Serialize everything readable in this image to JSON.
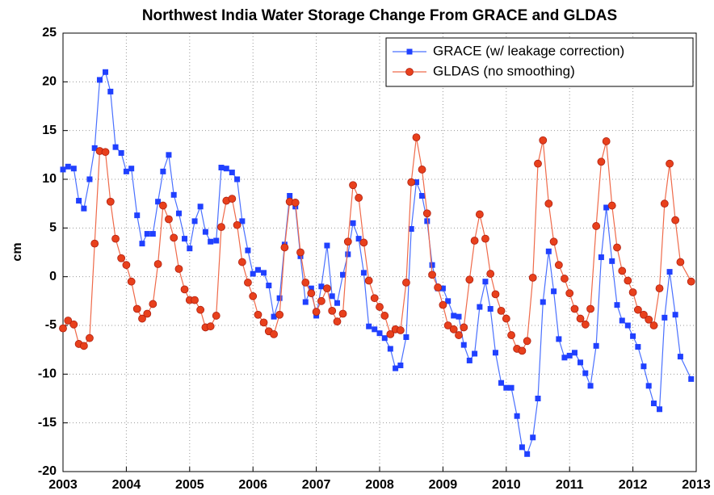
{
  "chart_data": {
    "type": "line",
    "title": "Northwest India Water Storage Change From GRACE and GLDAS",
    "y_label": "cm",
    "x": [
      2003.0,
      2003.08,
      2003.17,
      2003.25,
      2003.33,
      2003.42,
      2003.5,
      2003.58,
      2003.67,
      2003.75,
      2003.83,
      2003.92,
      2004.0,
      2004.08,
      2004.17,
      2004.25,
      2004.33,
      2004.42,
      2004.5,
      2004.58,
      2004.67,
      2004.75,
      2004.83,
      2004.92,
      2005.0,
      2005.08,
      2005.17,
      2005.25,
      2005.33,
      2005.42,
      2005.5,
      2005.58,
      2005.67,
      2005.75,
      2005.83,
      2005.92,
      2006.0,
      2006.08,
      2006.17,
      2006.25,
      2006.33,
      2006.42,
      2006.5,
      2006.58,
      2006.67,
      2006.75,
      2006.83,
      2006.92,
      2007.0,
      2007.08,
      2007.17,
      2007.25,
      2007.33,
      2007.42,
      2007.5,
      2007.58,
      2007.67,
      2007.75,
      2007.83,
      2007.92,
      2008.0,
      2008.08,
      2008.17,
      2008.25,
      2008.33,
      2008.42,
      2008.5,
      2008.58,
      2008.67,
      2008.75,
      2008.83,
      2008.92,
      2009.0,
      2009.08,
      2009.17,
      2009.25,
      2009.33,
      2009.42,
      2009.5,
      2009.58,
      2009.67,
      2009.75,
      2009.83,
      2009.92,
      2010.0,
      2010.08,
      2010.17,
      2010.25,
      2010.33,
      2010.42,
      2010.5,
      2010.58,
      2010.67,
      2010.75,
      2010.83,
      2010.92,
      2011.0,
      2011.08,
      2011.17,
      2011.25,
      2011.33,
      2011.42,
      2011.5,
      2011.58,
      2011.67,
      2011.75,
      2011.83,
      2011.92,
      2012.0,
      2012.08,
      2012.17,
      2012.25,
      2012.33,
      2012.42,
      2012.5,
      2012.58,
      2012.67,
      2012.75,
      2012.92
    ],
    "series": [
      {
        "name": "GRACE (w/ leakage correction)",
        "color": "#2040ff",
        "line_color": "#4a70ff",
        "marker": "square",
        "values": [
          11,
          11.3,
          11.1,
          7.8,
          7,
          10,
          13.2,
          20.2,
          21,
          19,
          13.3,
          12.7,
          10.8,
          11.1,
          6.3,
          3.4,
          4.4,
          4.4,
          7.7,
          10.8,
          12.5,
          8.4,
          6.5,
          3.9,
          2.9,
          5.7,
          7.2,
          4.6,
          3.6,
          3.7,
          11.2,
          11.1,
          10.7,
          10,
          5.7,
          2.7,
          0.3,
          0.7,
          0.4,
          -0.9,
          -4.1,
          -2.2,
          3.3,
          8.3,
          7.2,
          2.1,
          -2.6,
          -1.2,
          -4,
          -1,
          3.2,
          -2,
          -2.7,
          0.2,
          2.3,
          5.5,
          3.9,
          0.4,
          -5.1,
          -5.4,
          -5.8,
          -6.3,
          -7.4,
          -9.4,
          -9.1,
          -6.2,
          4.9,
          9.7,
          8.3,
          5.7,
          1.2,
          -1.2,
          -1.2,
          -2.5,
          -4,
          -4.1,
          -7,
          -8.6,
          -7.9,
          -3.1,
          -0.5,
          -3.3,
          -7.8,
          -10.9,
          -11.4,
          -11.4,
          -14.3,
          -17.5,
          -18.2,
          -16.5,
          -12.5,
          -2.6,
          2.6,
          -1.5,
          -6.4,
          -8.3,
          -8.1,
          -7.8,
          -8.8,
          -9.9,
          -11.2,
          -7.1,
          2,
          7.1,
          1.6,
          -2.9,
          -4.5,
          -5,
          -6.1,
          -7.2,
          -9.2,
          -11.2,
          -13,
          -13.6,
          -4.2,
          0.5,
          -3.9,
          -8.2,
          -10.5
        ]
      },
      {
        "name": "GLDAS (no smoothing)",
        "color": "#e8401c",
        "line_color": "#ef6a4a",
        "marker": "circle",
        "values": [
          -5.3,
          -4.5,
          -4.9,
          -6.9,
          -7.1,
          -6.3,
          3.4,
          12.9,
          12.8,
          7.7,
          3.9,
          1.9,
          1.2,
          -0.5,
          -3.3,
          -4.3,
          -3.8,
          -2.8,
          1.3,
          7.3,
          5.9,
          4,
          0.8,
          -1.3,
          -2.4,
          -2.4,
          -3.4,
          -5.2,
          -5.1,
          -4,
          5.1,
          7.8,
          8,
          5.3,
          1.5,
          -0.6,
          -2,
          -3.9,
          -4.7,
          -5.6,
          -5.9,
          -3.9,
          3,
          7.7,
          7.6,
          2.5,
          -0.6,
          -1.7,
          -3.6,
          -2.5,
          -1.2,
          -3.5,
          -4.6,
          -3.8,
          3.6,
          9.4,
          8.1,
          3.5,
          -0.4,
          -2.2,
          -3.1,
          -4,
          -5.9,
          -5.4,
          -5.5,
          -0.6,
          9.7,
          14.3,
          11,
          6.5,
          0.2,
          -1.1,
          -2.9,
          -5,
          -5.4,
          -6,
          -5.2,
          -0.3,
          3.7,
          6.4,
          3.9,
          0.3,
          -1.8,
          -3.5,
          -4.3,
          -6,
          -7.4,
          -7.6,
          -6.6,
          -0.1,
          11.6,
          14,
          7.5,
          3.6,
          1.2,
          -0.2,
          -1.7,
          -3.3,
          -4.3,
          -4.9,
          -3.3,
          5.2,
          11.8,
          13.9,
          7.3,
          3,
          0.6,
          -0.4,
          -1.6,
          -3.4,
          -3.9,
          -4.4,
          -5,
          -1.2,
          7.5,
          11.6,
          5.8,
          1.5,
          -0.5
        ]
      }
    ],
    "xlim": [
      2003,
      2013
    ],
    "xticks": [
      2003,
      2004,
      2005,
      2006,
      2007,
      2008,
      2009,
      2010,
      2011,
      2012,
      2013
    ],
    "ylim": [
      -20,
      25
    ],
    "yticks": [
      -20,
      -15,
      -10,
      -5,
      0,
      5,
      10,
      15,
      20,
      25
    ],
    "grid": true,
    "legend": "upper right"
  }
}
